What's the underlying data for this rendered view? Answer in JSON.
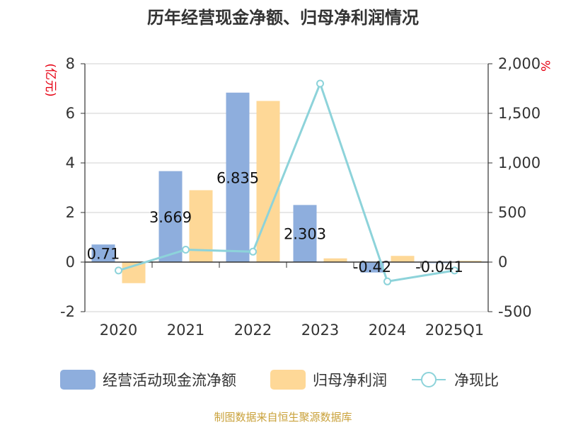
{
  "title": "历年经营现金净额、归母净利润情况",
  "source": "制图数据来自恒生聚源数据库",
  "colors": {
    "series1": "#8eaedd",
    "series2": "#fed897",
    "series3": "#8dd3da",
    "unit": "#e60012",
    "source": "#c9a13a"
  },
  "chart_data": {
    "type": "bar",
    "title": "历年经营现金净额、归母净利润情况",
    "categories": [
      "2020",
      "2021",
      "2022",
      "2023",
      "2024",
      "2025Q1"
    ],
    "left_axis": {
      "unit": "(亿元)",
      "ylim": [
        -2,
        8
      ],
      "ticks": [
        "8",
        "6",
        "4",
        "2",
        "0",
        "-2"
      ],
      "tick_values": [
        8,
        6,
        4,
        2,
        0,
        -2
      ]
    },
    "right_axis": {
      "unit": "%",
      "ylim": [
        -500,
        2000
      ],
      "ticks": [
        "2,000",
        "1,500",
        "1,000",
        "500",
        "0",
        "-500"
      ],
      "tick_values": [
        2000,
        1500,
        1000,
        500,
        0,
        -500
      ]
    },
    "grid": true,
    "legend_position": "bottom",
    "series": [
      {
        "name": "经营活动现金流净额",
        "type": "bar",
        "axis": "left",
        "values": [
          0.71,
          3.669,
          6.835,
          2.303,
          -0.42,
          -0.041
        ],
        "labels": [
          "0.71",
          "3.669",
          "6.835",
          "2.303",
          "-0.42",
          "-0.041"
        ]
      },
      {
        "name": "归母净利润",
        "type": "bar",
        "axis": "left",
        "values": [
          -0.85,
          2.9,
          6.5,
          0.15,
          0.25,
          0.05
        ]
      },
      {
        "name": "净现比",
        "type": "line",
        "axis": "right",
        "values": [
          -85,
          125,
          105,
          1800,
          -195,
          -85
        ]
      }
    ]
  }
}
